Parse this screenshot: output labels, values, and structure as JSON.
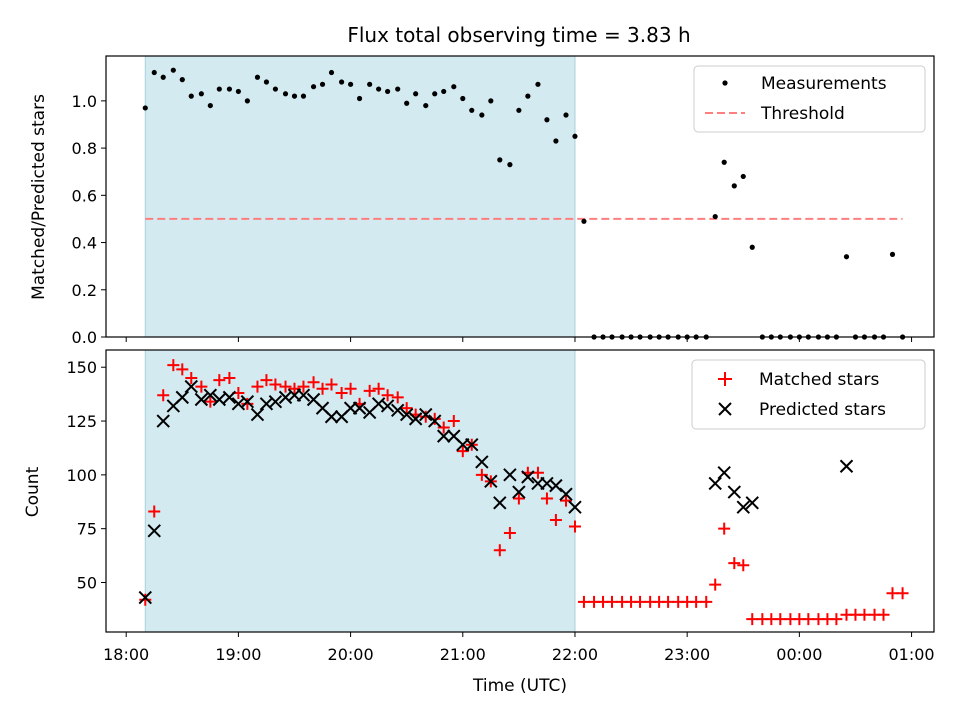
{
  "title": "Flux total observing time = 3.83 h",
  "colors": {
    "measurement": "#000000",
    "threshold": "#ff7f7f",
    "matched": "#ff0000",
    "predicted": "#000000",
    "shade": "#d3eaf1"
  },
  "chart_data": [
    {
      "type": "scatter",
      "ylabel": "Matched/Predicted stars",
      "ylim": [
        0,
        1.19
      ],
      "yticks": [
        0.0,
        0.2,
        0.4,
        0.6,
        0.8,
        1.0
      ],
      "ytick_labels": [
        "0.0",
        "0.2",
        "0.4",
        "0.6",
        "0.8",
        "1.0"
      ],
      "xlim_hours": [
        17.82,
        25.2
      ],
      "shaded_span_hours": [
        18.17,
        22.0
      ],
      "legend": {
        "position": "top-right",
        "entries": [
          "Measurements",
          "Threshold"
        ]
      },
      "threshold": {
        "name": "Threshold",
        "y": 0.5,
        "x_hours": [
          18.17,
          24.92
        ]
      },
      "series": [
        {
          "name": "Measurements",
          "x_hours": [
            18.17,
            18.25,
            18.33,
            18.42,
            18.5,
            18.58,
            18.67,
            18.75,
            18.83,
            18.92,
            19.0,
            19.08,
            19.17,
            19.25,
            19.33,
            19.42,
            19.5,
            19.58,
            19.67,
            19.75,
            19.83,
            19.92,
            20.0,
            20.08,
            20.17,
            20.25,
            20.33,
            20.42,
            20.5,
            20.58,
            20.67,
            20.75,
            20.83,
            20.92,
            21.0,
            21.08,
            21.17,
            21.25,
            21.33,
            21.42,
            21.5,
            21.58,
            21.67,
            21.75,
            21.83,
            21.92,
            22.0,
            22.08,
            22.17,
            22.25,
            22.33,
            22.42,
            22.5,
            22.58,
            22.67,
            22.75,
            22.83,
            22.92,
            23.0,
            23.08,
            23.17,
            23.25,
            23.33,
            23.42,
            23.5,
            23.58,
            23.67,
            23.75,
            23.83,
            23.92,
            24.0,
            24.08,
            24.17,
            24.25,
            24.33,
            24.42,
            24.5,
            24.58,
            24.67,
            24.75,
            24.83,
            24.92
          ],
          "y": [
            0.97,
            1.12,
            1.1,
            1.13,
            1.09,
            1.02,
            1.03,
            0.98,
            1.05,
            1.05,
            1.04,
            1.0,
            1.1,
            1.08,
            1.05,
            1.03,
            1.02,
            1.02,
            1.06,
            1.07,
            1.12,
            1.08,
            1.07,
            1.01,
            1.07,
            1.05,
            1.04,
            1.05,
            0.99,
            1.03,
            0.98,
            1.03,
            1.04,
            1.06,
            1.01,
            0.96,
            0.94,
            1.0,
            0.75,
            0.73,
            0.96,
            1.02,
            1.07,
            0.92,
            0.83,
            0.94,
            0.85,
            0.49,
            0.0,
            0.0,
            0.0,
            0.0,
            0.0,
            0.0,
            0.0,
            0.0,
            0.0,
            0.0,
            0.0,
            0.0,
            0.0,
            0.51,
            0.74,
            0.64,
            0.68,
            0.38,
            0.0,
            0.0,
            0.0,
            0.0,
            0.0,
            0.0,
            0.0,
            0.0,
            0.0,
            0.34,
            0.0,
            0.0,
            0.0,
            0.0,
            0.35,
            0.0
          ]
        }
      ]
    },
    {
      "type": "scatter",
      "xlabel": "Time (UTC)",
      "ylabel": "Count",
      "ylim": [
        27,
        158
      ],
      "yticks": [
        50,
        75,
        100,
        125,
        150
      ],
      "ytick_labels": [
        "50",
        "75",
        "100",
        "125",
        "150"
      ],
      "xlim_hours": [
        17.82,
        25.2
      ],
      "xticks_hours": [
        18,
        19,
        20,
        21,
        22,
        23,
        24,
        25
      ],
      "xtick_labels": [
        "18:00",
        "19:00",
        "20:00",
        "21:00",
        "22:00",
        "23:00",
        "00:00",
        "01:00"
      ],
      "shaded_span_hours": [
        18.17,
        22.0
      ],
      "legend": {
        "position": "top-right",
        "entries": [
          "Matched stars",
          "Predicted stars"
        ]
      },
      "series": [
        {
          "name": "Matched stars",
          "marker": "plus",
          "x_hours": [
            18.17,
            18.25,
            18.33,
            18.42,
            18.5,
            18.58,
            18.67,
            18.75,
            18.83,
            18.92,
            19.0,
            19.08,
            19.17,
            19.25,
            19.33,
            19.42,
            19.5,
            19.58,
            19.67,
            19.75,
            19.83,
            19.92,
            20.0,
            20.08,
            20.17,
            20.25,
            20.33,
            20.42,
            20.5,
            20.58,
            20.67,
            20.75,
            20.83,
            20.92,
            21.0,
            21.08,
            21.17,
            21.25,
            21.33,
            21.42,
            21.5,
            21.58,
            21.67,
            21.75,
            21.83,
            21.92,
            22.0,
            22.08,
            22.17,
            22.25,
            22.33,
            22.42,
            22.5,
            22.58,
            22.67,
            22.75,
            22.83,
            22.92,
            23.0,
            23.08,
            23.17,
            23.25,
            23.33,
            23.42,
            23.5,
            23.58,
            23.67,
            23.75,
            23.83,
            23.92,
            24.0,
            24.08,
            24.17,
            24.25,
            24.33,
            24.42,
            24.5,
            24.58,
            24.67,
            24.75,
            24.83,
            24.92
          ],
          "y": [
            42,
            83,
            137,
            151,
            149,
            145,
            141,
            134,
            144,
            145,
            138,
            133,
            141,
            144,
            142,
            141,
            140,
            141,
            143,
            140,
            142,
            138,
            140,
            133,
            139,
            140,
            137,
            136,
            131,
            128,
            127,
            126,
            122,
            125,
            111,
            114,
            100,
            97,
            65,
            73,
            89,
            101,
            101,
            89,
            79,
            88,
            76,
            41,
            41,
            41,
            41,
            41,
            41,
            41,
            41,
            41,
            41,
            41,
            41,
            41,
            41,
            49,
            75,
            59,
            58,
            33,
            33,
            33,
            33,
            33,
            33,
            33,
            33,
            33,
            33,
            35,
            35,
            35,
            35,
            35,
            45,
            45
          ]
        },
        {
          "name": "Predicted stars",
          "marker": "x",
          "x_hours": [
            18.17,
            18.25,
            18.33,
            18.42,
            18.5,
            18.58,
            18.67,
            18.75,
            18.83,
            18.92,
            19.0,
            19.08,
            19.17,
            19.25,
            19.33,
            19.42,
            19.5,
            19.58,
            19.67,
            19.75,
            19.83,
            19.92,
            20.0,
            20.08,
            20.17,
            20.25,
            20.33,
            20.42,
            20.5,
            20.58,
            20.67,
            20.75,
            20.83,
            20.92,
            21.0,
            21.08,
            21.17,
            21.25,
            21.33,
            21.42,
            21.5,
            21.58,
            21.67,
            21.75,
            21.83,
            21.92,
            22.0,
            23.25,
            23.33,
            23.42,
            23.5,
            23.58,
            24.42
          ],
          "y": [
            43,
            74,
            125,
            132,
            136,
            141,
            135,
            137,
            135,
            136,
            133,
            134,
            128,
            133,
            134,
            136,
            137,
            137,
            135,
            131,
            127,
            127,
            131,
            131,
            129,
            133,
            132,
            130,
            128,
            126,
            128,
            125,
            118,
            118,
            114,
            114,
            106,
            97,
            87,
            100,
            92,
            99,
            96,
            96,
            95,
            91,
            85,
            96,
            101,
            92,
            85,
            87,
            104
          ]
        }
      ]
    }
  ]
}
